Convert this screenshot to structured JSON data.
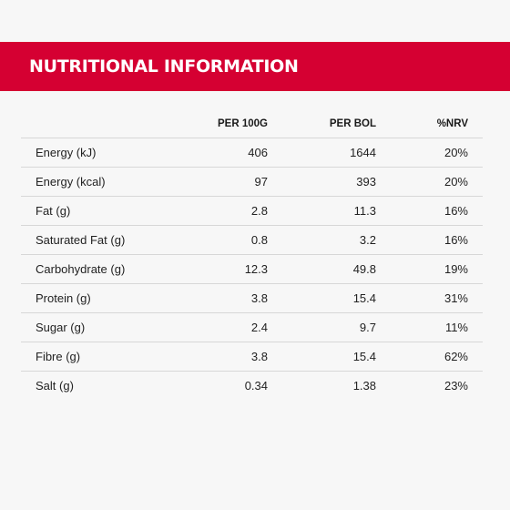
{
  "header": {
    "title": "NUTRITIONAL INFORMATION"
  },
  "table": {
    "columns": [
      "",
      "PER 100G",
      "PER BOL",
      "%NRV"
    ],
    "rows": [
      {
        "name": "Energy (kJ)",
        "per100g": "406",
        "perBol": "1644",
        "nrv": "20%"
      },
      {
        "name": "Energy (kcal)",
        "per100g": "97",
        "perBol": "393",
        "nrv": "20%"
      },
      {
        "name": "Fat (g)",
        "per100g": "2.8",
        "perBol": "11.3",
        "nrv": "16%"
      },
      {
        "name": "Saturated Fat (g)",
        "per100g": "0.8",
        "perBol": "3.2",
        "nrv": "16%"
      },
      {
        "name": "Carbohydrate (g)",
        "per100g": "12.3",
        "perBol": "49.8",
        "nrv": "19%"
      },
      {
        "name": "Protein (g)",
        "per100g": "3.8",
        "perBol": "15.4",
        "nrv": "31%"
      },
      {
        "name": "Sugar (g)",
        "per100g": "2.4",
        "perBol": "9.7",
        "nrv": "11%"
      },
      {
        "name": "Fibre (g)",
        "per100g": "3.8",
        "perBol": "15.4",
        "nrv": "62%"
      },
      {
        "name": "Salt (g)",
        "per100g": "0.34",
        "perBol": "1.38",
        "nrv": "23%"
      }
    ]
  },
  "colors": {
    "banner": "#d50032",
    "background": "#f7f7f7",
    "divider": "#d7d7d7"
  }
}
